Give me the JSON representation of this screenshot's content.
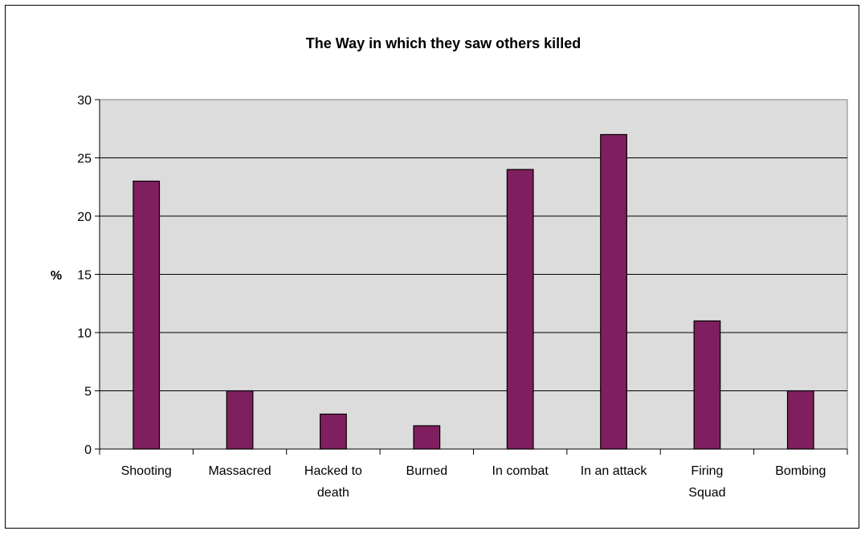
{
  "chart_data": {
    "type": "bar",
    "title": "The Way in which they saw others killed",
    "ylabel": "%",
    "xlabel": "",
    "categories": [
      [
        "Shooting"
      ],
      [
        "Massacred"
      ],
      [
        "Hacked to",
        "death"
      ],
      [
        "Burned"
      ],
      [
        "In combat"
      ],
      [
        "In an attack"
      ],
      [
        "Firing",
        "Squad"
      ],
      [
        "Bombing"
      ]
    ],
    "values": [
      23,
      5,
      3,
      2,
      24,
      27,
      11,
      5
    ],
    "ylim": [
      0,
      30
    ],
    "yticks": [
      0,
      5,
      10,
      15,
      20,
      25,
      30
    ],
    "grid": true,
    "legend": "none",
    "colors": {
      "bar": "#7F1F5F",
      "plot_background": "#DCDCDC",
      "gridline": "#000000",
      "border": "#808080"
    }
  }
}
